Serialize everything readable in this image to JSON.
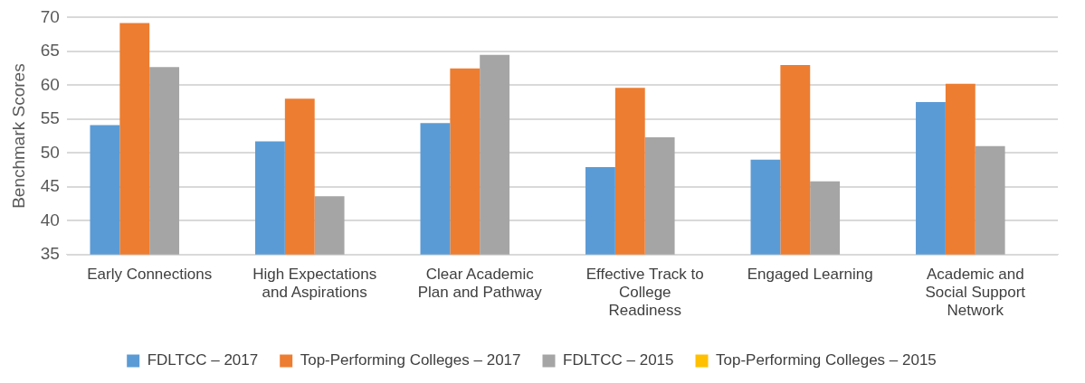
{
  "chart_data": {
    "type": "bar",
    "ylabel": "Benchmark Scores",
    "categories": [
      "Early Connections",
      "High Expectations and Aspirations",
      "Clear Academic Plan and Pathway",
      "Effective Track to College Readiness",
      "Engaged Learning",
      "Academic and Social Support Network"
    ],
    "series": [
      {
        "name": "FDLTCC – 2017",
        "color": "#5b9bd5",
        "values": [
          54.1,
          51.7,
          54.4,
          47.9,
          49.0,
          57.5
        ]
      },
      {
        "name": "Top-Performing Colleges – 2017",
        "color": "#ed7d31",
        "values": [
          69.2,
          58.0,
          62.5,
          59.6,
          63.0,
          60.2
        ]
      },
      {
        "name": "FDLTCC – 2015",
        "color": "#a5a5a5",
        "values": [
          62.7,
          43.6,
          64.5,
          52.3,
          45.8,
          51.0
        ]
      },
      {
        "name": "Top-Performing Colleges – 2015",
        "color": "#ffc000",
        "values": [
          null,
          null,
          null,
          null,
          null,
          null
        ]
      }
    ],
    "ylim": [
      35,
      70
    ],
    "yticks": [
      35,
      40,
      45,
      50,
      55,
      60,
      65,
      70
    ],
    "grid": "y",
    "legend": "bottom"
  }
}
